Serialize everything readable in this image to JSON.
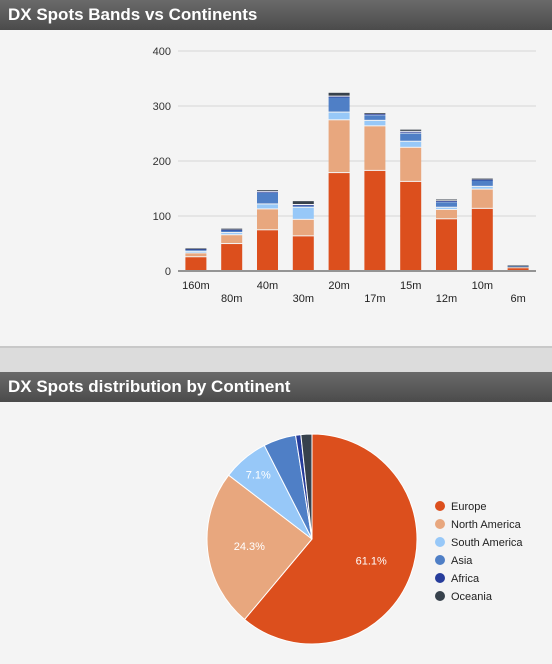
{
  "panels": {
    "bands_title": "DX Spots Bands vs Continents",
    "distribution_title": "DX Spots distribution by Continent"
  },
  "colors": {
    "Europe": "#dc4f1d",
    "North America": "#e8a77e",
    "South America": "#97c8f8",
    "Asia": "#4f7fc6",
    "Africa": "#263c9b",
    "Oceania": "#37414c"
  },
  "chart_data": [
    {
      "type": "bar",
      "stacked": true,
      "categories": [
        "160m",
        "80m",
        "40m",
        "30m",
        "20m",
        "17m",
        "15m",
        "12m",
        "10m",
        "6m"
      ],
      "ylim": [
        0,
        400
      ],
      "yticks": [
        0,
        100,
        200,
        300,
        400
      ],
      "grid": true,
      "series": [
        {
          "name": "Europe",
          "values": [
            25,
            49,
            74,
            63,
            178,
            182,
            162,
            94,
            113,
            5
          ]
        },
        {
          "name": "North America",
          "values": [
            7,
            16,
            38,
            30,
            96,
            81,
            62,
            17,
            35,
            2
          ]
        },
        {
          "name": "South America",
          "values": [
            3,
            4,
            9,
            22,
            14,
            10,
            11,
            4,
            5,
            1
          ]
        },
        {
          "name": "Asia",
          "values": [
            4,
            5,
            21,
            3,
            28,
            10,
            15,
            10,
            12,
            1
          ]
        },
        {
          "name": "Africa",
          "values": [
            1,
            1,
            2,
            2,
            1,
            2,
            3,
            2,
            1,
            0
          ]
        },
        {
          "name": "Oceania",
          "values": [
            1,
            2,
            3,
            7,
            7,
            2,
            4,
            3,
            2,
            1
          ]
        }
      ]
    },
    {
      "type": "pie",
      "slices": [
        {
          "name": "Europe",
          "value": 61.1,
          "label": "61.1%"
        },
        {
          "name": "North America",
          "value": 24.3,
          "label": "24.3%"
        },
        {
          "name": "South America",
          "value": 7.1,
          "label": "7.1%"
        },
        {
          "name": "Asia",
          "value": 5.0,
          "label": ""
        },
        {
          "name": "Africa",
          "value": 0.8,
          "label": ""
        },
        {
          "name": "Oceania",
          "value": 1.7,
          "label": ""
        }
      ],
      "legend": [
        "Europe",
        "North America",
        "South America",
        "Asia",
        "Africa",
        "Oceania"
      ],
      "legend_position": "right"
    }
  ]
}
